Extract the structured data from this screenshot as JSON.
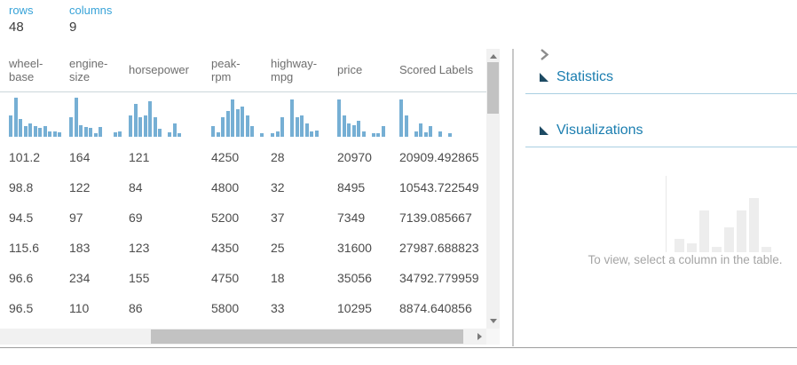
{
  "summary": {
    "rows": {
      "label": "rows",
      "value": "48"
    },
    "columns": {
      "label": "columns",
      "value": "9"
    }
  },
  "table": {
    "columns": [
      {
        "label": "wheel-base",
        "histogram": [
          0.55,
          1.0,
          0.45,
          0.28,
          0.33,
          0.28,
          0.22,
          0.28,
          0.14,
          0.14,
          0.12
        ],
        "values": [
          "101.2",
          "98.8",
          "94.5",
          "115.6",
          "96.6",
          "96.5"
        ]
      },
      {
        "label": "engine-size",
        "histogram": [
          0.5,
          1.0,
          0.3,
          0.26,
          0.22,
          0.1,
          0.26,
          0,
          0,
          0.12,
          0.14
        ],
        "values": [
          "164",
          "122",
          "97",
          "183",
          "234",
          "110"
        ]
      },
      {
        "label": "horsepower",
        "histogram": [
          0.55,
          0.85,
          0.5,
          0.55,
          0.9,
          0.5,
          0.2,
          0,
          0.12,
          0.35,
          0.08
        ],
        "values": [
          "121",
          "84",
          "69",
          "123",
          "155",
          "86"
        ]
      },
      {
        "label": "peak-rpm",
        "histogram": [
          0.28,
          0.12,
          0.5,
          0.65,
          0.95,
          0.7,
          0.78,
          0.55,
          0.28,
          0,
          0.1
        ],
        "values": [
          "4250",
          "4800",
          "5200",
          "4350",
          "4750",
          "5800"
        ]
      },
      {
        "label": "highway-mpg",
        "histogram": [
          0.1,
          0.14,
          0.5,
          0,
          0.95,
          0.5,
          0.55,
          0.33,
          0.14,
          0.16
        ],
        "values": [
          "28",
          "32",
          "37",
          "25",
          "18",
          "33"
        ]
      },
      {
        "label": "price",
        "histogram": [
          0.95,
          0.55,
          0.35,
          0.3,
          0.4,
          0.14,
          0,
          0.1,
          0.1,
          0.28
        ],
        "values": [
          "20970",
          "8495",
          "7349",
          "31600",
          "35056",
          "10295"
        ]
      },
      {
        "label": "Scored Labels",
        "histogram": [
          0.95,
          0.55,
          0,
          0.14,
          0.33,
          0.12,
          0.28,
          0,
          0.14,
          0,
          0.1
        ],
        "values": [
          "20909.492865",
          "10543.722549",
          "7139.085667",
          "27987.688823",
          "34792.779959",
          "8874.640856"
        ]
      }
    ]
  },
  "panel": {
    "collapse_icon": "chevron-right-icon",
    "sections": [
      {
        "label": "Statistics",
        "icon": "collapse-triangle-icon"
      },
      {
        "label": "Visualizations",
        "icon": "collapse-triangle-icon"
      }
    ],
    "placeholder": {
      "text": "To view, select a column in the table.",
      "ghost_bars": [
        0.18,
        0.12,
        0.55,
        0.07,
        0.33,
        0.55,
        0.72,
        0.07
      ]
    }
  },
  "colors": {
    "accent_blue": "#38a3d8",
    "section_text_blue": "#1b7eb0",
    "section_triangle": "#1d4a63",
    "histogram_bar": "#76afd4",
    "section_rule": "#a9cfe2",
    "scrollbar_thumb": "#c2c2c2",
    "ghost_bar": "#ededed"
  }
}
